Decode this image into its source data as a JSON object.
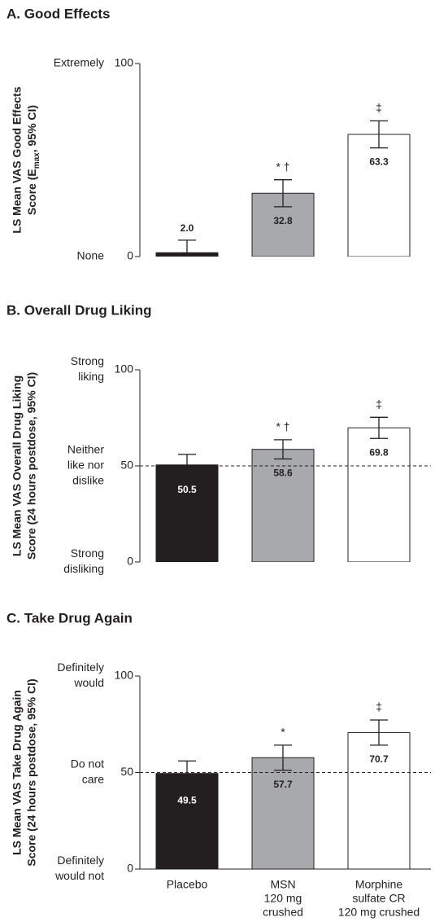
{
  "chart_data": [
    {
      "type": "bar",
      "title": "A. Good Effects",
      "y_label": [
        "LS Mean VAS Good Effects",
        [
          "Score (E",
          "max",
          ", 95% CI)"
        ]
      ],
      "categories": [
        null,
        null,
        null
      ],
      "values": [
        2.0,
        32.8,
        63.3
      ],
      "value_labels": [
        "2.0",
        "32.8",
        "63.3"
      ],
      "errors": [
        6.5,
        7,
        7
      ],
      "markers": [
        null,
        "* †",
        "‡"
      ],
      "colors": [
        "#231f20",
        "#a7a9ac",
        "#ffffff"
      ],
      "ylim": [
        0,
        100
      ],
      "yticks": [
        0,
        100
      ],
      "ytick_descriptions": [
        [
          "None"
        ],
        [
          "Extremely"
        ]
      ]
    },
    {
      "type": "bar",
      "title": "B. Overall Drug Liking",
      "y_label": [
        "LS Mean VAS Overall Drug Liking",
        "Score (24 hours postdose, 95% CI)"
      ],
      "categories": [
        null,
        null,
        null
      ],
      "values": [
        50.5,
        58.6,
        69.8
      ],
      "errors": [
        5.5,
        5,
        5.5
      ],
      "markers": [
        null,
        "* †",
        "‡"
      ],
      "colors": [
        "#231f20",
        "#a7a9ac",
        "#ffffff"
      ],
      "ylim": [
        0,
        100
      ],
      "yticks": [
        0,
        50,
        100
      ],
      "ytick_descriptions": [
        [
          "Strong",
          "disliking"
        ],
        [
          "Neither",
          "like nor",
          "dislike"
        ],
        [
          "Strong",
          "liking"
        ]
      ],
      "reference_line": 50
    },
    {
      "type": "bar",
      "title": "C. Take Drug Again",
      "y_label": [
        "LS Mean VAS Take Drug Again",
        "Score (24 hours postdose, 95% CI)"
      ],
      "categories": [
        [
          "Placebo"
        ],
        [
          "MSN",
          "120 mg",
          "crushed"
        ],
        [
          "Morphine",
          "sulfate CR",
          "120 mg crushed"
        ]
      ],
      "values": [
        49.5,
        57.7,
        70.7
      ],
      "errors": [
        6.5,
        6.5,
        6.5
      ],
      "markers": [
        null,
        "*",
        "‡"
      ],
      "colors": [
        "#231f20",
        "#a7a9ac",
        "#ffffff"
      ],
      "ylim": [
        0,
        100
      ],
      "yticks": [
        0,
        50,
        100
      ],
      "ytick_descriptions": [
        [
          "Definitely",
          "would not"
        ],
        [
          "Do not",
          "care"
        ],
        [
          "Definitely",
          "would"
        ]
      ],
      "reference_line": 50
    }
  ]
}
